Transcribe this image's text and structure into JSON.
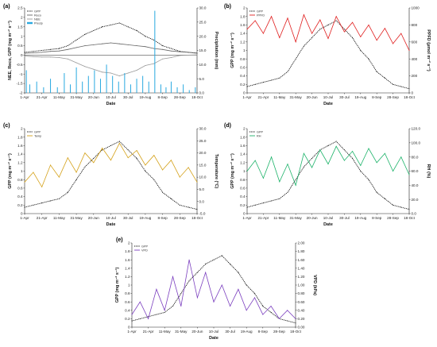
{
  "chart_data": [
    {
      "type": "line",
      "panel": "(a)",
      "xlabel": "Date",
      "ylabel": "NEE, Reco, GPP (mg m⁻² s⁻¹)",
      "y2label": "Precipitation (mm)",
      "ylim": [
        -2,
        2.5
      ],
      "yticks": [
        "-2",
        "-1.5",
        "-1",
        "-0.5",
        "0",
        "0.5",
        "1",
        "1.5",
        "2",
        "2.5"
      ],
      "y2lim": [
        0,
        30
      ],
      "y2ticks": [
        "0.0",
        "5.0",
        "10.0",
        "15.0",
        "20.0",
        "25.0",
        "30.0"
      ],
      "xticks": [
        "1-Apr",
        "21-Apr",
        "11-May",
        "31-May",
        "20-Jun",
        "10-Jul",
        "30-Jul",
        "19-Aug",
        "8-Sep",
        "28-Sep",
        "18-Oct"
      ],
      "series": [
        {
          "name": "GPP",
          "color": "#111111",
          "style": "dotted",
          "axis": "left",
          "x": [
            0,
            10,
            20,
            30,
            40,
            50,
            60,
            70,
            80,
            90,
            100,
            110,
            120,
            130,
            140,
            150,
            160,
            170,
            180,
            190,
            200
          ],
          "values": [
            0.15,
            0.2,
            0.25,
            0.3,
            0.35,
            0.5,
            0.8,
            1.1,
            1.3,
            1.5,
            1.6,
            1.7,
            1.5,
            1.3,
            1.0,
            0.8,
            0.5,
            0.35,
            0.2,
            0.15,
            0.1
          ]
        },
        {
          "name": "Reco",
          "color": "#666666",
          "style": "solid",
          "axis": "left",
          "x": [
            0,
            10,
            20,
            30,
            40,
            50,
            60,
            70,
            80,
            90,
            100,
            110,
            120,
            130,
            140,
            150,
            160,
            170,
            180,
            190,
            200
          ],
          "values": [
            0.1,
            0.12,
            0.15,
            0.2,
            0.22,
            0.3,
            0.4,
            0.5,
            0.55,
            0.6,
            0.65,
            0.6,
            0.55,
            0.5,
            0.45,
            0.35,
            0.3,
            0.22,
            0.18,
            0.15,
            0.12
          ]
        },
        {
          "name": "NEE",
          "color": "#999999",
          "style": "solid",
          "axis": "left",
          "x": [
            0,
            10,
            20,
            30,
            40,
            50,
            60,
            70,
            80,
            90,
            100,
            110,
            120,
            130,
            140,
            150,
            160,
            170,
            180,
            190,
            200
          ],
          "values": [
            -0.05,
            -0.08,
            -0.1,
            -0.1,
            -0.13,
            -0.2,
            -0.4,
            -0.6,
            -0.75,
            -0.9,
            -0.95,
            -1.1,
            -0.95,
            -0.8,
            -0.55,
            -0.45,
            -0.2,
            -0.13,
            -0.02,
            0.0,
            0.02
          ]
        },
        {
          "name": "Precip",
          "color": "#29a9e0",
          "style": "bars",
          "axis": "right",
          "x": [
            2,
            6,
            14,
            22,
            30,
            38,
            46,
            53,
            60,
            67,
            74,
            81,
            88,
            95,
            102,
            109,
            116,
            123,
            130,
            137,
            144,
            151,
            158,
            164,
            170,
            177,
            184,
            191,
            198
          ],
          "values": [
            8,
            3,
            4,
            2,
            5,
            2,
            7,
            3,
            9,
            4,
            6,
            8,
            5,
            10,
            6,
            4,
            7,
            3,
            5,
            6,
            4,
            29,
            3,
            2,
            4,
            2,
            3,
            1,
            2
          ]
        }
      ]
    },
    {
      "type": "line",
      "panel": "(b)",
      "xlabel": "Date",
      "ylabel": "GPP (mg m⁻² s⁻¹)",
      "y2label": "PPFD (μmol m⁻² s⁻¹)",
      "ylim": [
        0,
        2
      ],
      "yticks": [
        "0",
        "0.2",
        "0.4",
        "0.6",
        "0.8",
        "1",
        "1.2",
        "1.4",
        "1.6",
        "1.8",
        "2"
      ],
      "y2lim": [
        0,
        1000
      ],
      "y2ticks": [
        "0",
        "200",
        "400",
        "600",
        "800",
        "1000"
      ],
      "xticks": [
        "1-Apr",
        "21-Apr",
        "11-May",
        "31-May",
        "20-Jun",
        "10-Jul",
        "30-Jul",
        "19-Aug",
        "8-Sep",
        "28-Sep",
        "18-Oct"
      ],
      "series": [
        {
          "name": "GPP",
          "color": "#111111",
          "style": "dotted",
          "axis": "left",
          "x": [
            0,
            10,
            20,
            30,
            40,
            50,
            60,
            70,
            80,
            90,
            100,
            110,
            120,
            130,
            140,
            150,
            160,
            170,
            180,
            190,
            200
          ],
          "values": [
            0.15,
            0.2,
            0.25,
            0.3,
            0.35,
            0.5,
            0.8,
            1.1,
            1.3,
            1.5,
            1.6,
            1.7,
            1.5,
            1.3,
            1.0,
            0.8,
            0.5,
            0.35,
            0.2,
            0.15,
            0.1
          ]
        },
        {
          "name": "PPFD",
          "color": "#e02020",
          "style": "solid",
          "axis": "right",
          "x": [
            0,
            10,
            20,
            30,
            40,
            50,
            60,
            70,
            80,
            90,
            100,
            110,
            120,
            130,
            140,
            150,
            160,
            170,
            180,
            190,
            200
          ],
          "values": [
            750,
            850,
            700,
            900,
            650,
            880,
            600,
            920,
            700,
            860,
            640,
            900,
            720,
            830,
            660,
            800,
            620,
            760,
            580,
            700,
            500
          ]
        }
      ]
    },
    {
      "type": "line",
      "panel": "(c)",
      "xlabel": "Date",
      "ylabel": "GPP (mg m⁻² s⁻¹)",
      "y2label": "Temperature (°C)",
      "ylim": [
        0,
        2
      ],
      "yticks": [
        "0",
        "0.2",
        "0.4",
        "0.6",
        "0.8",
        "1",
        "1.2",
        "1.4",
        "1.6",
        "1.8",
        "2"
      ],
      "y2lim": [
        -5,
        30
      ],
      "y2ticks": [
        "-5.0",
        "0.0",
        "5.0",
        "10.0",
        "15.0",
        "20.0",
        "25.0",
        "30.0"
      ],
      "xticks": [
        "1-Apr",
        "21-Apr",
        "11-May",
        "31-May",
        "20-Jun",
        "10-Jul",
        "30-Jul",
        "19-Aug",
        "8-Sep",
        "28-Sep",
        "18-Oct"
      ],
      "series": [
        {
          "name": "GPP",
          "color": "#111111",
          "style": "dotted",
          "axis": "left",
          "x": [
            0,
            10,
            20,
            30,
            40,
            50,
            60,
            70,
            80,
            90,
            100,
            110,
            120,
            130,
            140,
            150,
            160,
            170,
            180,
            190,
            200
          ],
          "values": [
            0.15,
            0.2,
            0.25,
            0.3,
            0.35,
            0.5,
            0.8,
            1.1,
            1.3,
            1.5,
            1.6,
            1.7,
            1.5,
            1.3,
            1.0,
            0.8,
            0.5,
            0.35,
            0.2,
            0.15,
            0.1
          ]
        },
        {
          "name": "Temp",
          "color": "#d4a017",
          "style": "solid",
          "axis": "right",
          "x": [
            0,
            10,
            20,
            30,
            40,
            50,
            60,
            70,
            80,
            90,
            100,
            110,
            120,
            130,
            140,
            150,
            160,
            170,
            180,
            190,
            200
          ],
          "values": [
            8,
            12,
            6,
            15,
            10,
            18,
            12,
            20,
            16,
            22,
            17,
            24,
            18,
            21,
            15,
            19,
            13,
            17,
            10,
            14,
            8
          ]
        }
      ]
    },
    {
      "type": "line",
      "panel": "(d)",
      "xlabel": "Date",
      "ylabel": "GPP (mg m⁻² s⁻¹)",
      "y2label": "RH (%)",
      "ylim": [
        0,
        2
      ],
      "yticks": [
        "0",
        "0.2",
        "0.4",
        "0.6",
        "0.8",
        "1",
        "1.2",
        "1.4",
        "1.6",
        "1.8",
        "2"
      ],
      "y2lim": [
        0,
        120
      ],
      "y2ticks": [
        "0.0",
        "20.0",
        "40.0",
        "60.0",
        "80.0",
        "100.0",
        "120.0"
      ],
      "xticks": [
        "1-Apr",
        "21-Apr",
        "11-May",
        "31-May",
        "20-Jun",
        "10-Jul",
        "30-Jul",
        "19-Aug",
        "8-Sep",
        "28-Sep",
        "18-Oct"
      ],
      "series": [
        {
          "name": "GPP",
          "color": "#111111",
          "style": "dotted",
          "axis": "left",
          "x": [
            0,
            10,
            20,
            30,
            40,
            50,
            60,
            70,
            80,
            90,
            100,
            110,
            120,
            130,
            140,
            150,
            160,
            170,
            180,
            190,
            200
          ],
          "values": [
            0.15,
            0.2,
            0.25,
            0.3,
            0.35,
            0.5,
            0.8,
            1.1,
            1.3,
            1.5,
            1.6,
            1.7,
            1.5,
            1.3,
            1.0,
            0.8,
            0.5,
            0.35,
            0.2,
            0.15,
            0.1
          ]
        },
        {
          "name": "RH",
          "color": "#1db36a",
          "style": "solid",
          "axis": "right",
          "x": [
            0,
            10,
            20,
            30,
            40,
            50,
            60,
            70,
            80,
            90,
            100,
            110,
            120,
            130,
            140,
            150,
            160,
            170,
            180,
            190,
            200
          ],
          "values": [
            60,
            75,
            50,
            80,
            45,
            70,
            40,
            85,
            65,
            90,
            70,
            95,
            75,
            88,
            68,
            92,
            72,
            85,
            60,
            80,
            55
          ]
        }
      ]
    },
    {
      "type": "line",
      "panel": "(e)",
      "xlabel": "Date",
      "ylabel": "GPP (mg m⁻² s⁻¹)",
      "y2label": "VPD (kPa)",
      "ylim": [
        0,
        2
      ],
      "yticks": [
        "0",
        "0.2",
        "0.4",
        "0.6",
        "0.8",
        "1",
        "1.2",
        "1.4",
        "1.6",
        "1.8",
        "2"
      ],
      "y2lim": [
        0,
        2
      ],
      "y2ticks": [
        "0.00",
        "0.20",
        "0.40",
        "0.60",
        "0.80",
        "1.00",
        "1.20",
        "1.40",
        "1.60",
        "1.80",
        "2.00"
      ],
      "xticks": [
        "1-Apr",
        "21-Apr",
        "11-May",
        "31-May",
        "20-Jun",
        "10-Jul",
        "30-Jul",
        "19-Aug",
        "8-Sep",
        "28-Sep",
        "18-Oct"
      ],
      "series": [
        {
          "name": "GPP",
          "color": "#111111",
          "style": "dotted",
          "axis": "left",
          "x": [
            0,
            10,
            20,
            30,
            40,
            50,
            60,
            70,
            80,
            90,
            100,
            110,
            120,
            130,
            140,
            150,
            160,
            170,
            180,
            190,
            200
          ],
          "values": [
            0.15,
            0.2,
            0.25,
            0.3,
            0.35,
            0.5,
            0.8,
            1.1,
            1.3,
            1.5,
            1.6,
            1.7,
            1.5,
            1.3,
            1.0,
            0.8,
            0.5,
            0.35,
            0.2,
            0.15,
            0.1
          ]
        },
        {
          "name": "VPD",
          "color": "#7b3fbf",
          "style": "solid",
          "axis": "right",
          "x": [
            0,
            10,
            20,
            30,
            40,
            50,
            60,
            70,
            80,
            90,
            100,
            110,
            120,
            130,
            140,
            150,
            160,
            170,
            180,
            190,
            200
          ],
          "values": [
            0.3,
            0.6,
            0.2,
            0.9,
            0.4,
            1.2,
            0.5,
            1.6,
            0.7,
            1.3,
            0.6,
            1.0,
            0.5,
            0.9,
            0.4,
            0.7,
            0.3,
            0.5,
            0.2,
            0.4,
            0.2
          ]
        }
      ]
    }
  ]
}
